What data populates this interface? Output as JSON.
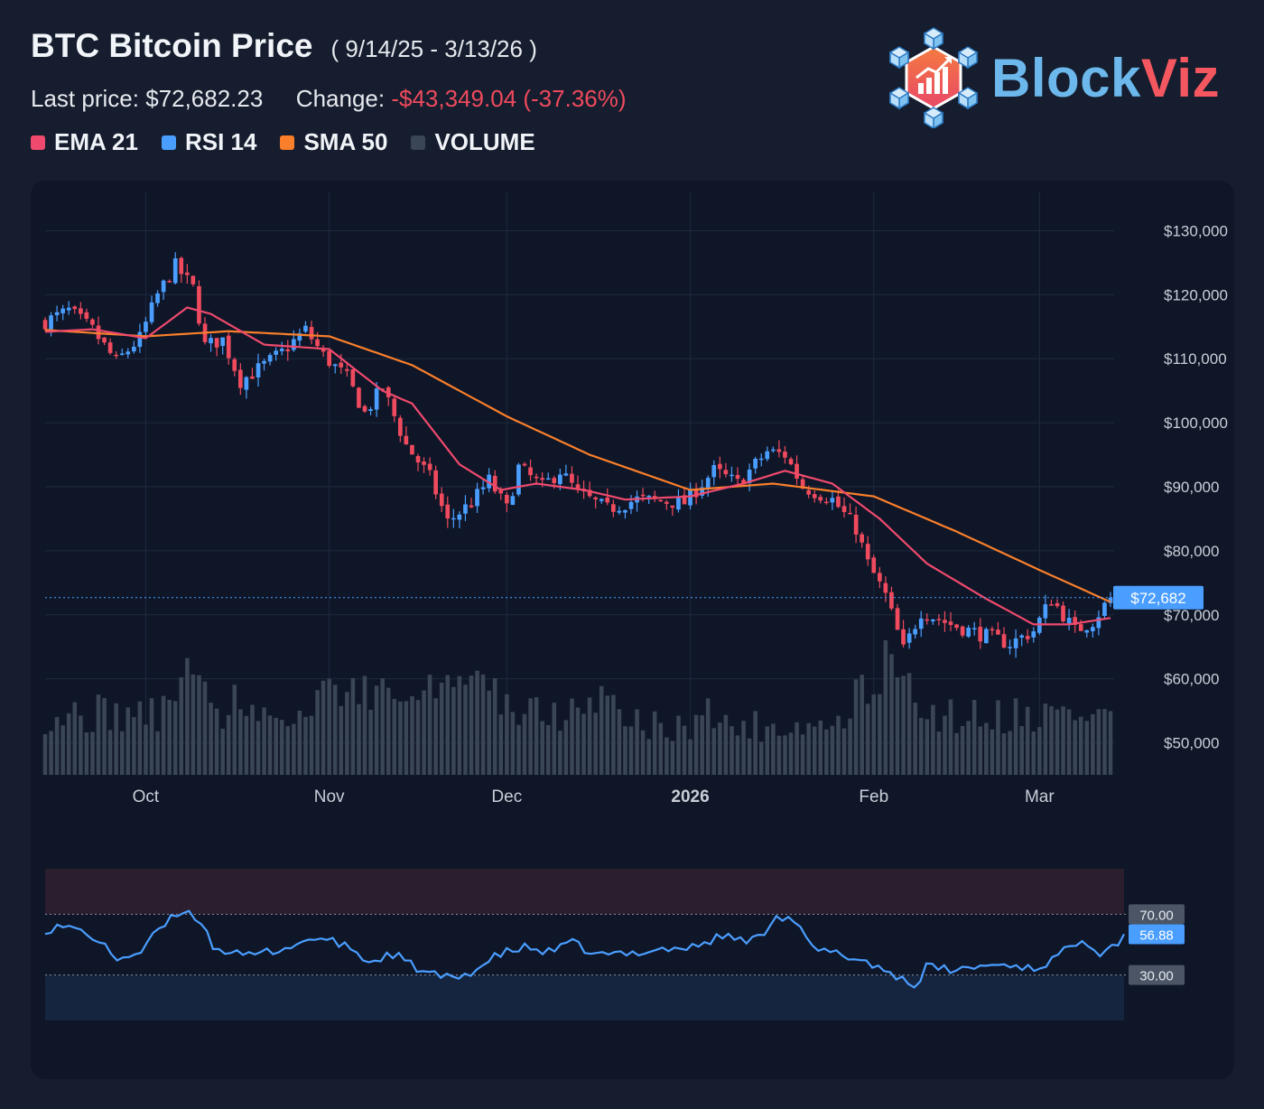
{
  "header": {
    "title": "BTC Bitcoin Price",
    "date_range": "( 9/14/25 - 3/13/26 )",
    "last_price_label": "Last price:",
    "last_price": "$72,682.23",
    "change_label": "Change:",
    "change_value": "-$43,349.04 (-37.36%)",
    "change_color": "#ef4a5d"
  },
  "legend": [
    {
      "label": "EMA 21",
      "color": "#ef4a6d"
    },
    {
      "label": "RSI 14",
      "color": "#4a9eff"
    },
    {
      "label": "SMA 50",
      "color": "#f97f2b"
    },
    {
      "label": "VOLUME",
      "color": "#3a4556"
    }
  ],
  "logo": {
    "part1": "Block",
    "part2": "Viz",
    "color1": "#6cb8ec",
    "color2": "#f4575f",
    "icon": "cube-network-chart-icon"
  },
  "chart_data": {
    "type": "candlestick",
    "y_ticks": [
      "$130,000",
      "$120,000",
      "$110,000",
      "$100,000",
      "$90,000",
      "$80,000",
      "$70,000",
      "$60,000",
      "$50,000"
    ],
    "ylim": [
      45000,
      135000
    ],
    "x_ticks": [
      {
        "label": "Oct",
        "bold": false
      },
      {
        "label": "Nov",
        "bold": false
      },
      {
        "label": "Dec",
        "bold": false
      },
      {
        "label": "2026",
        "bold": true
      },
      {
        "label": "Feb",
        "bold": false
      },
      {
        "label": "Mar",
        "bold": false
      }
    ],
    "last_price_tag": "$72,682",
    "last_price_value": 72682,
    "up_color": "#4a9eff",
    "down_color": "#ef4a5d",
    "ema_color": "#ef4a6d",
    "sma_color": "#f97f2b",
    "price_path": [
      [
        "2025-09-14",
        115800
      ],
      [
        "2025-09-18",
        117500
      ],
      [
        "2025-09-22",
        114500
      ],
      [
        "2025-09-26",
        109500
      ],
      [
        "2025-09-30",
        113200
      ],
      [
        "2025-10-03",
        120000
      ],
      [
        "2025-10-06",
        124500
      ],
      [
        "2025-10-09",
        121000
      ],
      [
        "2025-10-11",
        112000
      ],
      [
        "2025-10-14",
        113000
      ],
      [
        "2025-10-17",
        106500
      ],
      [
        "2025-10-21",
        109000
      ],
      [
        "2025-10-24",
        111000
      ],
      [
        "2025-10-28",
        114500
      ],
      [
        "2025-10-31",
        110500
      ],
      [
        "2025-11-04",
        107000
      ],
      [
        "2025-11-07",
        101500
      ],
      [
        "2025-11-10",
        105500
      ],
      [
        "2025-11-14",
        96500
      ],
      [
        "2025-11-18",
        91500
      ],
      [
        "2025-11-21",
        84500
      ],
      [
        "2025-11-25",
        87500
      ],
      [
        "2025-11-28",
        91000
      ],
      [
        "2025-12-01",
        86500
      ],
      [
        "2025-12-03",
        93000
      ],
      [
        "2025-12-07",
        90000
      ],
      [
        "2025-12-10",
        92500
      ],
      [
        "2025-12-13",
        89000
      ],
      [
        "2025-12-18",
        86500
      ],
      [
        "2025-12-23",
        88000
      ],
      [
        "2025-12-31",
        87500
      ],
      [
        "2026-01-05",
        92500
      ],
      [
        "2026-01-09",
        90500
      ],
      [
        "2026-01-14",
        95500
      ],
      [
        "2026-01-17",
        95000
      ],
      [
        "2026-01-20",
        90000
      ],
      [
        "2026-01-25",
        88000
      ],
      [
        "2026-01-29",
        83500
      ],
      [
        "2026-01-31",
        78000
      ],
      [
        "2026-02-03",
        73000
      ],
      [
        "2026-02-06",
        64500
      ],
      [
        "2026-02-09",
        70500
      ],
      [
        "2026-02-14",
        68500
      ],
      [
        "2026-02-19",
        67000
      ],
      [
        "2026-02-24",
        65500
      ],
      [
        "2026-02-28",
        67500
      ],
      [
        "2026-03-03",
        72500
      ],
      [
        "2026-03-07",
        67500
      ],
      [
        "2026-03-10",
        69000
      ],
      [
        "2026-03-13",
        72682
      ]
    ],
    "ema21": [
      [
        "2025-09-14",
        114200
      ],
      [
        "2025-09-22",
        114600
      ],
      [
        "2025-10-01",
        113200
      ],
      [
        "2025-10-08",
        118000
      ],
      [
        "2025-10-12",
        117000
      ],
      [
        "2025-10-21",
        112200
      ],
      [
        "2025-11-01",
        111500
      ],
      [
        "2025-11-10",
        105000
      ],
      [
        "2025-11-15",
        103000
      ],
      [
        "2025-11-23",
        93500
      ],
      [
        "2025-11-30",
        89500
      ],
      [
        "2025-12-06",
        90500
      ],
      [
        "2025-12-14",
        89500
      ],
      [
        "2025-12-21",
        88000
      ],
      [
        "2026-01-01",
        88500
      ],
      [
        "2026-01-10",
        90500
      ],
      [
        "2026-01-17",
        92500
      ],
      [
        "2026-01-25",
        90500
      ],
      [
        "2026-02-02",
        85000
      ],
      [
        "2026-02-10",
        78000
      ],
      [
        "2026-02-20",
        72500
      ],
      [
        "2026-02-28",
        68500
      ],
      [
        "2026-03-06",
        68500
      ],
      [
        "2026-03-13",
        69500
      ]
    ],
    "sma50": [
      [
        "2025-09-14",
        114500
      ],
      [
        "2025-10-01",
        113500
      ],
      [
        "2025-10-15",
        114300
      ],
      [
        "2025-11-01",
        113500
      ],
      [
        "2025-11-15",
        109000
      ],
      [
        "2025-12-01",
        101000
      ],
      [
        "2025-12-15",
        95000
      ],
      [
        "2026-01-01",
        89500
      ],
      [
        "2026-01-15",
        90500
      ],
      [
        "2026-02-01",
        88500
      ],
      [
        "2026-02-15",
        83000
      ],
      [
        "2026-03-01",
        77000
      ],
      [
        "2026-03-13",
        72000
      ]
    ],
    "rsi": {
      "levels": [
        {
          "label": "70.00",
          "value": 70
        },
        {
          "label": "30.00",
          "value": 30
        }
      ],
      "current_label": "56.88",
      "current_value": 56.88,
      "color": "#4a9eff",
      "path": [
        [
          "2025-09-14",
          60
        ],
        [
          "2025-09-17",
          62
        ],
        [
          "2025-09-21",
          58
        ],
        [
          "2025-09-26",
          41
        ],
        [
          "2025-09-30",
          45
        ],
        [
          "2025-10-03",
          60
        ],
        [
          "2025-10-07",
          73
        ],
        [
          "2025-10-10",
          66
        ],
        [
          "2025-10-12",
          49
        ],
        [
          "2025-10-17",
          42
        ],
        [
          "2025-10-22",
          46
        ],
        [
          "2025-10-26",
          50
        ],
        [
          "2025-10-29",
          55
        ],
        [
          "2025-11-04",
          48
        ],
        [
          "2025-11-07",
          38
        ],
        [
          "2025-11-11",
          44
        ],
        [
          "2025-11-16",
          32
        ],
        [
          "2025-11-21",
          27
        ],
        [
          "2025-11-25",
          34
        ],
        [
          "2025-11-29",
          44
        ],
        [
          "2025-12-03",
          48
        ],
        [
          "2025-12-07",
          45
        ],
        [
          "2025-12-11",
          51
        ],
        [
          "2025-12-15",
          43
        ],
        [
          "2025-12-20",
          44
        ],
        [
          "2025-12-25",
          47
        ],
        [
          "2025-12-31",
          48
        ],
        [
          "2026-01-05",
          56
        ],
        [
          "2026-01-08",
          53
        ],
        [
          "2026-01-11",
          54
        ],
        [
          "2026-01-14",
          70
        ],
        [
          "2026-01-17",
          66
        ],
        [
          "2026-01-20",
          47
        ],
        [
          "2026-01-24",
          44
        ],
        [
          "2026-01-29",
          39
        ],
        [
          "2026-02-01",
          33
        ],
        [
          "2026-02-04",
          28
        ],
        [
          "2026-02-06",
          22
        ],
        [
          "2026-02-08",
          35
        ],
        [
          "2026-02-13",
          33
        ],
        [
          "2026-02-17",
          36
        ],
        [
          "2026-02-22",
          37
        ],
        [
          "2026-02-26",
          34
        ],
        [
          "2026-03-01",
          40
        ],
        [
          "2026-03-04",
          48
        ],
        [
          "2026-03-06",
          55
        ],
        [
          "2026-03-09",
          45
        ],
        [
          "2026-03-12",
          52
        ],
        [
          "2026-03-13",
          56.88
        ]
      ]
    }
  }
}
